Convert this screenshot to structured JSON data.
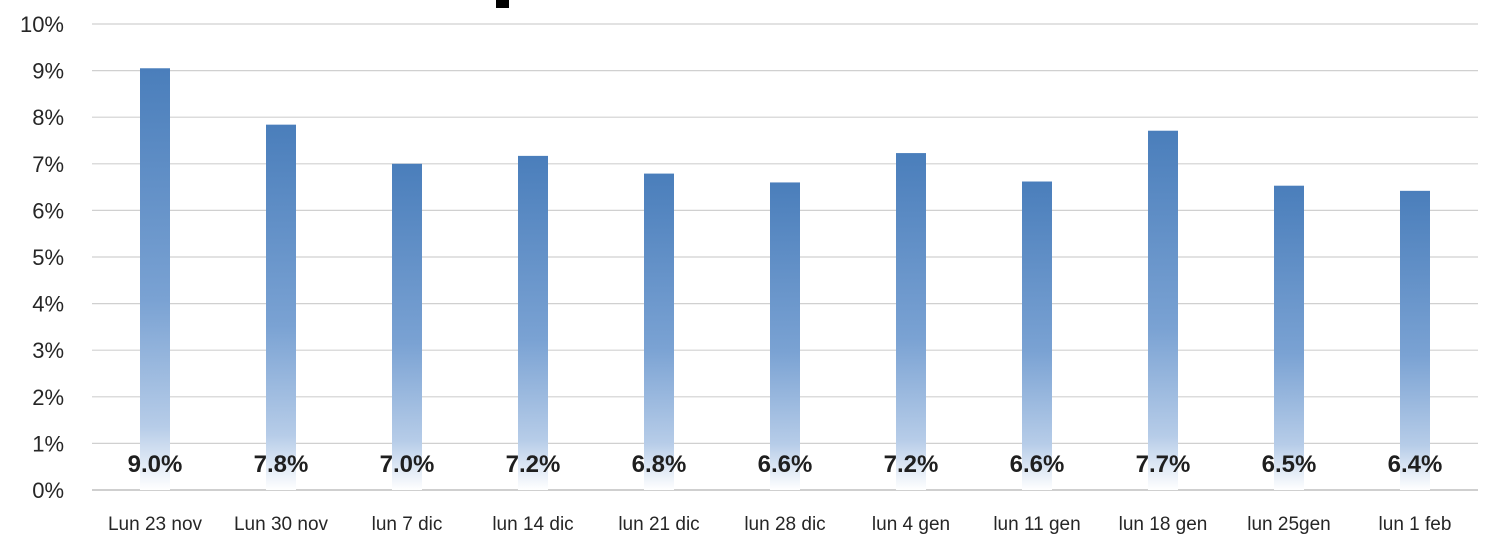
{
  "chart_data": {
    "type": "bar",
    "categories": [
      "Lun 23 nov",
      "Lun 30 nov",
      "lun 7 dic",
      "lun 14 dic",
      "lun 21 dic",
      "lun 28 dic",
      "lun 4 gen",
      "lun 11 gen",
      "lun 18 gen",
      "lun 25gen",
      "lun 1 feb"
    ],
    "values": [
      9.05,
      7.84,
      7.0,
      7.17,
      6.79,
      6.6,
      7.23,
      6.62,
      7.71,
      6.53,
      6.42
    ],
    "data_labels": [
      "9.0%",
      "7.8%",
      "7.0%",
      "7.2%",
      "6.8%",
      "6.6%",
      "7.2%",
      "6.6%",
      "7.7%",
      "6.5%",
      "6.4%"
    ],
    "y_ticks": [
      "0%",
      "1%",
      "2%",
      "3%",
      "4%",
      "5%",
      "6%",
      "7%",
      "8%",
      "9%",
      "10%"
    ],
    "ylim": [
      0,
      10
    ],
    "ylabel": "",
    "xlabel": "",
    "grid": true,
    "bar_color": "#4a7ebb",
    "bar_fade_color": "#ffffff"
  }
}
